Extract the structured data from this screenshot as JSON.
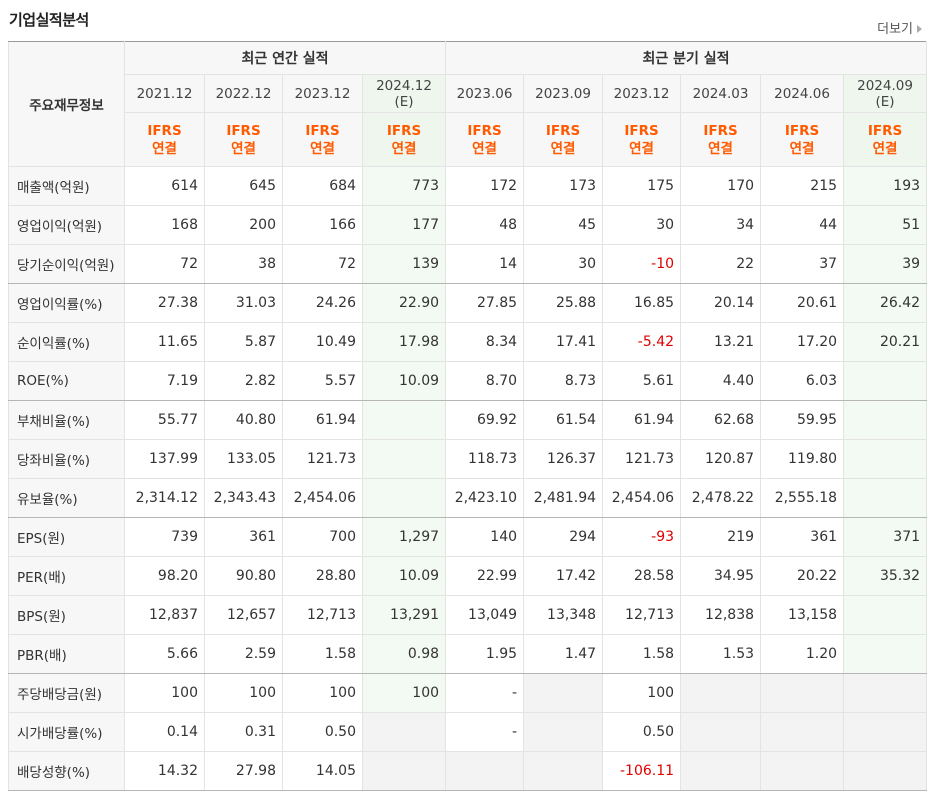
{
  "title": "기업실적분석",
  "more": "더보기",
  "table": {
    "corner": "주요재무정보",
    "groups": [
      "최근 연간 실적",
      "최근 분기 실적"
    ],
    "columns": [
      {
        "date": "2021.12",
        "basis": "IFRS\n연결"
      },
      {
        "date": "2022.12",
        "basis": "IFRS\n연결"
      },
      {
        "date": "2023.12",
        "basis": "IFRS\n연결"
      },
      {
        "date": "2024.12\n(E)",
        "basis": "IFRS\n연결"
      },
      {
        "date": "2023.06",
        "basis": "IFRS\n연결"
      },
      {
        "date": "2023.09",
        "basis": "IFRS\n연결"
      },
      {
        "date": "2023.12",
        "basis": "IFRS\n연결"
      },
      {
        "date": "2024.03",
        "basis": "IFRS\n연결"
      },
      {
        "date": "2024.06",
        "basis": "IFRS\n연결"
      },
      {
        "date": "2024.09\n(E)",
        "basis": "IFRS\n연결"
      }
    ],
    "rows": [
      {
        "label": "매출액(억원)",
        "values": [
          "614",
          "645",
          "684",
          "773",
          "172",
          "173",
          "175",
          "170",
          "215",
          "193"
        ]
      },
      {
        "label": "영업이익(억원)",
        "values": [
          "168",
          "200",
          "166",
          "177",
          "48",
          "45",
          "30",
          "34",
          "44",
          "51"
        ]
      },
      {
        "label": "당기순이익(억원)",
        "values": [
          "72",
          "38",
          "72",
          "139",
          "14",
          "30",
          "-10",
          "22",
          "37",
          "39"
        ]
      },
      {
        "label": "영업이익률(%)",
        "values": [
          "27.38",
          "31.03",
          "24.26",
          "22.90",
          "27.85",
          "25.88",
          "16.85",
          "20.14",
          "20.61",
          "26.42"
        ]
      },
      {
        "label": "순이익률(%)",
        "values": [
          "11.65",
          "5.87",
          "10.49",
          "17.98",
          "8.34",
          "17.41",
          "-5.42",
          "13.21",
          "17.20",
          "20.21"
        ]
      },
      {
        "label": "ROE(%)",
        "values": [
          "7.19",
          "2.82",
          "5.57",
          "10.09",
          "8.70",
          "8.73",
          "5.61",
          "4.40",
          "6.03",
          null
        ]
      },
      {
        "label": "부채비율(%)",
        "values": [
          "55.77",
          "40.80",
          "61.94",
          null,
          "69.92",
          "61.54",
          "61.94",
          "62.68",
          "59.95",
          null
        ]
      },
      {
        "label": "당좌비율(%)",
        "values": [
          "137.99",
          "133.05",
          "121.73",
          null,
          "118.73",
          "126.37",
          "121.73",
          "120.87",
          "119.80",
          null
        ]
      },
      {
        "label": "유보율(%)",
        "values": [
          "2,314.12",
          "2,343.43",
          "2,454.06",
          null,
          "2,423.10",
          "2,481.94",
          "2,454.06",
          "2,478.22",
          "2,555.18",
          null
        ]
      },
      {
        "label": "EPS(원)",
        "values": [
          "739",
          "361",
          "700",
          "1,297",
          "140",
          "294",
          "-93",
          "219",
          "361",
          "371"
        ]
      },
      {
        "label": "PER(배)",
        "values": [
          "98.20",
          "90.80",
          "28.80",
          "10.09",
          "22.99",
          "17.42",
          "28.58",
          "34.95",
          "20.22",
          "35.32"
        ]
      },
      {
        "label": "BPS(원)",
        "values": [
          "12,837",
          "12,657",
          "12,713",
          "13,291",
          "13,049",
          "13,348",
          "12,713",
          "12,838",
          "13,158",
          null
        ]
      },
      {
        "label": "PBR(배)",
        "values": [
          "5.66",
          "2.59",
          "1.58",
          "0.98",
          "1.95",
          "1.47",
          "1.58",
          "1.53",
          "1.20",
          null
        ]
      },
      {
        "label": "주당배당금(원)",
        "values": [
          "100",
          "100",
          "100",
          "100",
          "-",
          null,
          "100",
          null,
          null,
          null
        ]
      },
      {
        "label": "시가배당률(%)",
        "values": [
          "0.14",
          "0.31",
          "0.50",
          null,
          "-",
          null,
          "0.50",
          null,
          null,
          null
        ]
      },
      {
        "label": "배당성향(%)",
        "values": [
          "14.32",
          "27.98",
          "14.05",
          null,
          null,
          null,
          "-106.11",
          null,
          null,
          null
        ]
      }
    ]
  }
}
